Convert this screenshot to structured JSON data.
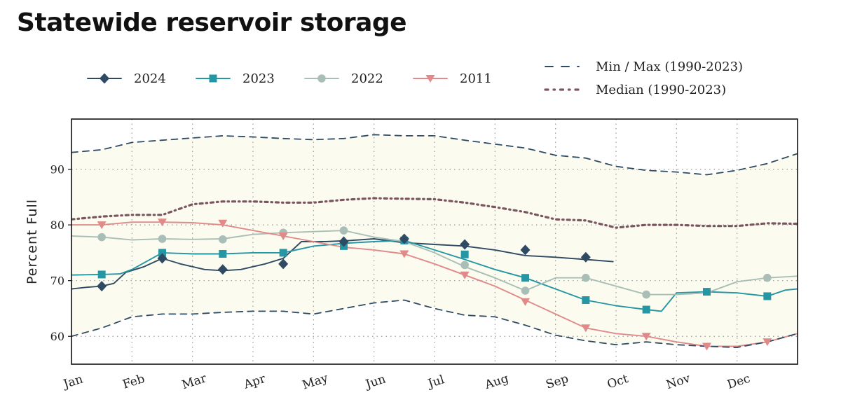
{
  "title": "Statewide reservoir storage",
  "chart_data": {
    "type": "line",
    "ylabel": "Percent Full",
    "xlabel": "",
    "ylim": [
      55,
      99
    ],
    "yticks": [
      60,
      70,
      80,
      90
    ],
    "xlim": [
      0,
      12
    ],
    "months": [
      "Jan",
      "Feb",
      "Mar",
      "Apr",
      "May",
      "Jun",
      "Jul",
      "Aug",
      "Sep",
      "Oct",
      "Nov",
      "Dec"
    ],
    "grid": true,
    "legend_position": "top",
    "band_color": "#fbfbef",
    "series": [
      {
        "name": "2024",
        "color": "#2f4a63",
        "marker": "diamond",
        "style": "solid",
        "x": [
          0,
          0.25,
          0.5,
          0.7,
          0.9,
          1.2,
          1.5,
          1.8,
          2.2,
          2.5,
          2.8,
          3.2,
          3.5,
          3.8,
          4.2,
          4.6,
          5.0,
          5.5,
          6.0,
          6.5,
          7.0,
          7.5,
          8.0,
          8.5,
          8.95
        ],
        "y": [
          68.5,
          68.8,
          69,
          69.5,
          71.5,
          72.5,
          74,
          73,
          72,
          71.8,
          72,
          73,
          74,
          77,
          77,
          77.2,
          77.5,
          76.8,
          76.5,
          76.2,
          75.5,
          74.5,
          74.2,
          73.8,
          73.4
        ]
      },
      {
        "name": "2023",
        "color": "#2596a3",
        "marker": "square",
        "style": "solid",
        "x": [
          0,
          0.5,
          0.8,
          1.0,
          1.5,
          2.0,
          2.5,
          3.0,
          3.5,
          4.0,
          4.5,
          5.0,
          5.5,
          6.0,
          6.5,
          7.0,
          7.5,
          8.0,
          8.5,
          9.0,
          9.5,
          9.75,
          10.0,
          10.5,
          11.0,
          11.5,
          11.8,
          12.0
        ],
        "y": [
          71,
          71.1,
          71.2,
          72,
          75,
          74.8,
          74.8,
          75,
          75,
          76.2,
          76.7,
          77,
          77.2,
          75.5,
          73.8,
          72,
          70.5,
          68.5,
          66.5,
          65.5,
          64.8,
          64.5,
          67.8,
          68,
          67.8,
          67.2,
          68.3,
          68.5
        ]
      },
      {
        "name": "2022",
        "color": "#a9beb6",
        "marker": "circle",
        "style": "solid",
        "x": [
          0,
          0.5,
          1.0,
          1.5,
          2.0,
          2.5,
          3.0,
          3.5,
          4.0,
          4.5,
          5.0,
          5.5,
          6.0,
          6.5,
          7.0,
          7.5,
          8.0,
          8.5,
          9.0,
          9.5,
          10.0,
          10.5,
          11.0,
          11.5,
          12.0
        ],
        "y": [
          78,
          77.8,
          77.3,
          77.5,
          77.4,
          77.5,
          78.3,
          78.6,
          78.8,
          79,
          77.8,
          77,
          75,
          72.5,
          70.5,
          68.2,
          70.5,
          70.5,
          69,
          67.5,
          67.5,
          67.8,
          69.8,
          70.5,
          70.8
        ]
      },
      {
        "name": "2011",
        "color": "#e08a8a",
        "marker": "triangle-down",
        "style": "solid",
        "x": [
          0,
          0.5,
          1.0,
          1.5,
          2.0,
          2.5,
          3.0,
          3.5,
          4.0,
          4.5,
          5.0,
          5.5,
          6.0,
          6.5,
          7.0,
          7.5,
          8.0,
          8.5,
          9.0,
          9.5,
          10.0,
          10.5,
          11.0,
          11.5,
          12.0
        ],
        "y": [
          80,
          80,
          80.5,
          80.5,
          80.4,
          80,
          79,
          78,
          77,
          76,
          75.5,
          74.8,
          73,
          71,
          69,
          66.5,
          64,
          61.5,
          60.5,
          60,
          59,
          58.2,
          58.2,
          59,
          60.5
        ]
      },
      {
        "name": "Min / Max (1990-2023)",
        "color": "#2f4a63",
        "marker": "none",
        "style": "dashed",
        "x": [
          0,
          0.5,
          1.0,
          1.5,
          2.0,
          2.5,
          3.0,
          3.5,
          4.0,
          4.5,
          5.0,
          5.5,
          6.0,
          6.5,
          7.0,
          7.5,
          8.0,
          8.5,
          9.0,
          9.5,
          10.0,
          10.5,
          11.0,
          11.5,
          12.0
        ],
        "y": [
          93,
          93.5,
          94.8,
          95.2,
          95.6,
          96,
          95.8,
          95.5,
          95.3,
          95.5,
          96.2,
          96,
          96,
          95.2,
          94.5,
          93.8,
          92.5,
          92,
          90.5,
          89.8,
          89.5,
          89,
          89.8,
          91,
          92.8
        ],
        "y_min": [
          60,
          61.5,
          63.5,
          64,
          64,
          64.3,
          64.5,
          64.5,
          64,
          65,
          66,
          66.5,
          65,
          63.8,
          63.5,
          62,
          60.2,
          59.2,
          58.5,
          59,
          58.5,
          58.2,
          58,
          59,
          60.5
        ]
      },
      {
        "name": "Median (1990-2023)",
        "color": "#7a5560",
        "marker": "none",
        "style": "dashdot",
        "x": [
          0,
          0.5,
          1.0,
          1.5,
          2.0,
          2.5,
          3.0,
          3.5,
          4.0,
          4.5,
          5.0,
          5.5,
          6.0,
          6.5,
          7.0,
          7.5,
          8.0,
          8.5,
          9.0,
          9.5,
          10.0,
          10.5,
          11.0,
          11.5,
          12.0
        ],
        "y": [
          81,
          81.5,
          81.8,
          81.8,
          83.7,
          84.2,
          84.2,
          84,
          84,
          84.5,
          84.8,
          84.7,
          84.6,
          84,
          83.2,
          82.3,
          81,
          80.8,
          79.5,
          80,
          80,
          79.8,
          79.8,
          80.3,
          80.2
        ]
      }
    ],
    "markers": {
      "2024": [
        [
          0.5,
          69
        ],
        [
          1.5,
          74
        ],
        [
          2.5,
          72
        ],
        [
          3.5,
          73
        ],
        [
          4.5,
          77
        ],
        [
          5.5,
          77.5
        ],
        [
          6.5,
          76.5
        ],
        [
          7.5,
          75.5
        ],
        [
          8.5,
          74.2
        ]
      ],
      "2023": [
        [
          0.5,
          71.1
        ],
        [
          1.5,
          75
        ],
        [
          2.5,
          74.8
        ],
        [
          3.5,
          75
        ],
        [
          4.5,
          76.2
        ],
        [
          5.5,
          77.2
        ],
        [
          6.5,
          74.7
        ],
        [
          7.5,
          70.5
        ],
        [
          8.5,
          66.5
        ],
        [
          9.5,
          64.8
        ],
        [
          10.5,
          68
        ],
        [
          11.5,
          67.2
        ]
      ],
      "2022": [
        [
          0.5,
          77.8
        ],
        [
          1.5,
          77.5
        ],
        [
          2.5,
          77.4
        ],
        [
          3.5,
          78.6
        ],
        [
          4.5,
          79
        ],
        [
          5.5,
          77.3
        ],
        [
          6.5,
          72.8
        ],
        [
          7.5,
          68.2
        ],
        [
          8.5,
          70.5
        ],
        [
          9.5,
          67.5
        ],
        [
          11.5,
          70.5
        ]
      ],
      "2011": [
        [
          0.5,
          80
        ],
        [
          1.5,
          80.5
        ],
        [
          2.5,
          80.3
        ],
        [
          3.5,
          78
        ],
        [
          4.5,
          76.5
        ],
        [
          5.5,
          74.8
        ],
        [
          6.5,
          71
        ],
        [
          7.5,
          66.2
        ],
        [
          8.5,
          61.5
        ],
        [
          9.5,
          60
        ],
        [
          10.5,
          58.2
        ],
        [
          11.5,
          59
        ]
      ]
    }
  }
}
